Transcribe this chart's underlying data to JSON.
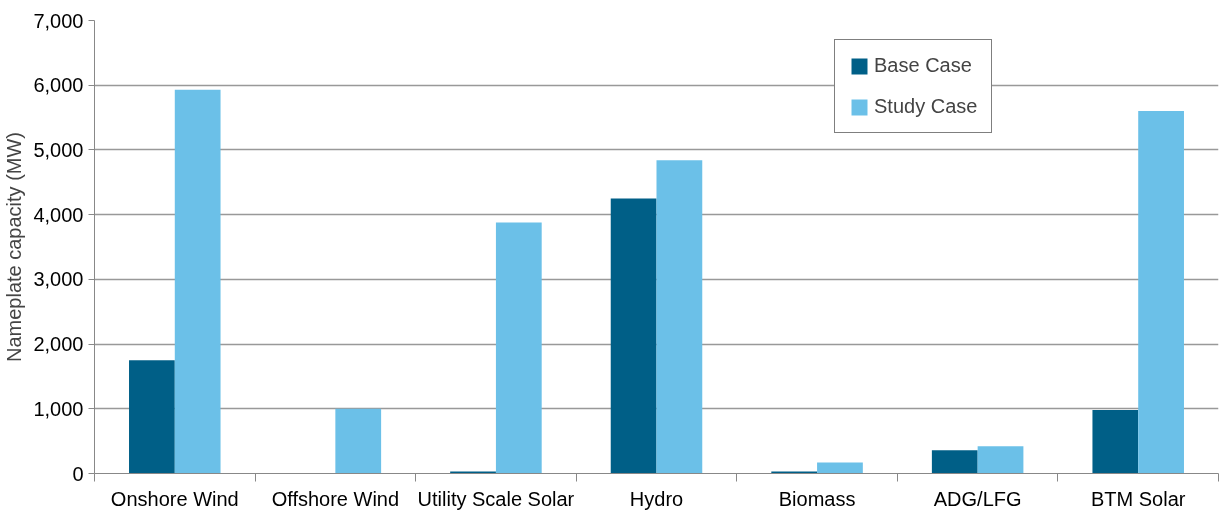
{
  "chart_data": {
    "type": "bar",
    "ylabel": "Nameplate capacity (MW)",
    "categories": [
      "Onshore Wind",
      "Offshore Wind",
      "Utility Scale Solar",
      "Hydro",
      "Biomass",
      "ADG/LFG",
      "BTM Solar"
    ],
    "series": [
      {
        "name": "Base Case",
        "color": "#005f87",
        "values": [
          1750,
          0,
          30,
          4250,
          30,
          360,
          980
        ]
      },
      {
        "name": "Study Case",
        "color": "#6bc0e8",
        "values": [
          5930,
          1000,
          3880,
          4840,
          170,
          420,
          5600
        ]
      }
    ],
    "ylim": [
      0,
      7000
    ],
    "yticks": [
      {
        "value": 0,
        "label": "0"
      },
      {
        "value": 1000,
        "label": "1,000"
      },
      {
        "value": 2000,
        "label": "2,000"
      },
      {
        "value": 3000,
        "label": "3,000"
      },
      {
        "value": 4000,
        "label": "4,000"
      },
      {
        "value": 5000,
        "label": "5,000"
      },
      {
        "value": 6000,
        "label": "6,000"
      },
      {
        "value": 7000,
        "label": "7,000"
      }
    ],
    "grid": "y",
    "legend": "top right"
  }
}
